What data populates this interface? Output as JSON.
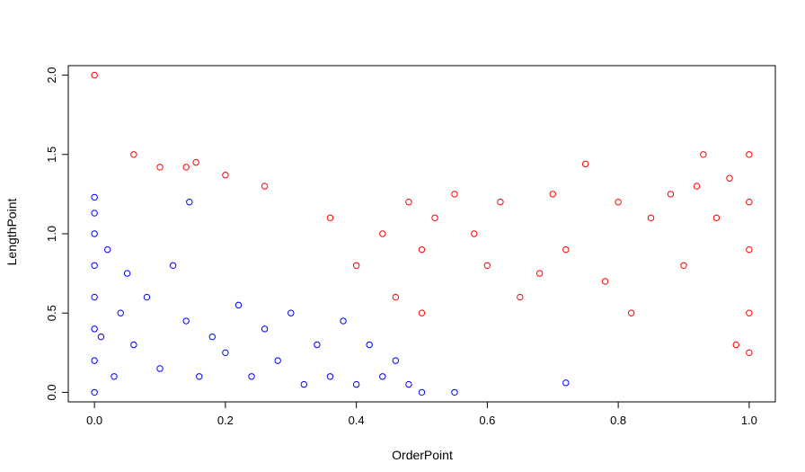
{
  "chart_data": {
    "type": "scatter",
    "title": "",
    "xlabel": "OrderPoint",
    "ylabel": "LengthPoint",
    "xlim": [
      -0.04,
      1.04
    ],
    "ylim": [
      -0.06,
      2.06
    ],
    "x_ticks": [
      0.0,
      0.2,
      0.4,
      0.6,
      0.8,
      1.0
    ],
    "x_tick_labels": [
      "0.0",
      "0.2",
      "0.4",
      "0.6",
      "0.8",
      "1.0"
    ],
    "y_ticks": [
      0.0,
      0.5,
      1.0,
      1.5,
      2.0
    ],
    "y_tick_labels": [
      "0.0",
      "0.5",
      "1.0",
      "1.5",
      "2.0"
    ],
    "grid": false,
    "legend": "none",
    "marker": "open-circle",
    "series": [
      {
        "color": "#0000ff",
        "points": [
          [
            0.0,
            0.0
          ],
          [
            0.0,
            0.2
          ],
          [
            0.0,
            0.4
          ],
          [
            0.0,
            0.6
          ],
          [
            0.0,
            0.8
          ],
          [
            0.0,
            1.0
          ],
          [
            0.0,
            1.23
          ],
          [
            0.0,
            1.13
          ],
          [
            0.01,
            0.35
          ],
          [
            0.02,
            0.9
          ],
          [
            0.03,
            0.1
          ],
          [
            0.04,
            0.5
          ],
          [
            0.05,
            0.75
          ],
          [
            0.06,
            0.3
          ],
          [
            0.08,
            0.6
          ],
          [
            0.1,
            0.15
          ],
          [
            0.12,
            0.8
          ],
          [
            0.14,
            0.45
          ],
          [
            0.145,
            1.2
          ],
          [
            0.16,
            0.1
          ],
          [
            0.18,
            0.35
          ],
          [
            0.2,
            0.25
          ],
          [
            0.22,
            0.55
          ],
          [
            0.24,
            0.1
          ],
          [
            0.26,
            0.4
          ],
          [
            0.28,
            0.2
          ],
          [
            0.3,
            0.5
          ],
          [
            0.32,
            0.05
          ],
          [
            0.34,
            0.3
          ],
          [
            0.36,
            0.1
          ],
          [
            0.38,
            0.45
          ],
          [
            0.4,
            0.05
          ],
          [
            0.42,
            0.3
          ],
          [
            0.44,
            0.1
          ],
          [
            0.46,
            0.2
          ],
          [
            0.48,
            0.05
          ],
          [
            0.5,
            0.0
          ],
          [
            0.55,
            0.0
          ],
          [
            0.72,
            0.06
          ]
        ]
      },
      {
        "color": "#ff0000",
        "points": [
          [
            0.0,
            2.0
          ],
          [
            0.06,
            1.5
          ],
          [
            0.1,
            1.42
          ],
          [
            0.14,
            1.42
          ],
          [
            0.155,
            1.45
          ],
          [
            0.2,
            1.37
          ],
          [
            0.26,
            1.3
          ],
          [
            0.36,
            1.1
          ],
          [
            0.4,
            0.8
          ],
          [
            0.44,
            1.0
          ],
          [
            0.46,
            0.6
          ],
          [
            0.48,
            1.2
          ],
          [
            0.5,
            0.9
          ],
          [
            0.5,
            0.5
          ],
          [
            0.52,
            1.1
          ],
          [
            0.55,
            1.25
          ],
          [
            0.58,
            1.0
          ],
          [
            0.6,
            0.8
          ],
          [
            0.62,
            1.2
          ],
          [
            0.65,
            0.6
          ],
          [
            0.68,
            0.75
          ],
          [
            0.7,
            1.25
          ],
          [
            0.72,
            0.9
          ],
          [
            0.75,
            1.44
          ],
          [
            0.78,
            0.7
          ],
          [
            0.8,
            1.2
          ],
          [
            0.82,
            0.5
          ],
          [
            0.85,
            1.1
          ],
          [
            0.88,
            1.25
          ],
          [
            0.9,
            0.8
          ],
          [
            0.92,
            1.3
          ],
          [
            0.93,
            1.5
          ],
          [
            0.95,
            1.1
          ],
          [
            0.97,
            1.35
          ],
          [
            0.98,
            0.3
          ],
          [
            1.0,
            1.5
          ],
          [
            1.0,
            1.2
          ],
          [
            1.0,
            0.9
          ],
          [
            1.0,
            0.5
          ],
          [
            1.0,
            0.25
          ]
        ]
      }
    ]
  }
}
